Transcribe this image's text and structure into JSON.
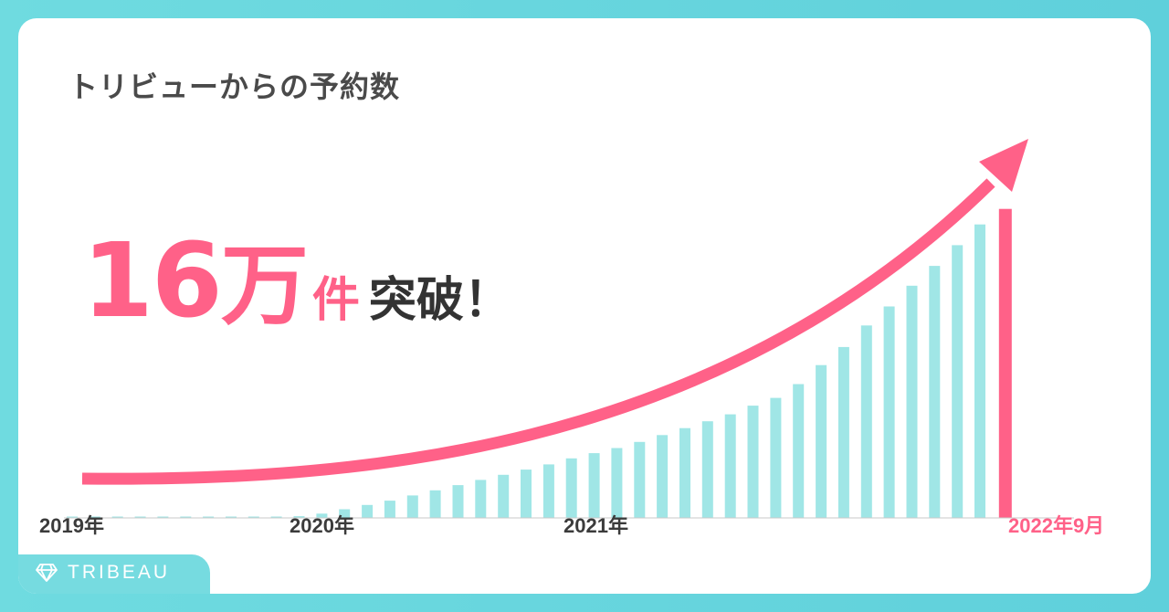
{
  "title": "トリビューからの予約数",
  "headline": {
    "number": "16",
    "unit_man": "万",
    "unit_ken": "件",
    "rest": "突破！"
  },
  "brand": {
    "name": "TRIBEAU",
    "icon": "diamond-icon"
  },
  "colors": {
    "bar": "#a0e6e6",
    "accent": "#ff6188",
    "text": "#3b3b3b",
    "frame": "#6fdbe0"
  },
  "chart_data": {
    "type": "bar",
    "title": "トリビューからの予約数",
    "x_tick_labels": [
      "2019年",
      "2020年",
      "2021年",
      "2022年9月"
    ],
    "values": [
      0.1,
      0.1,
      0.1,
      0.1,
      0.1,
      0.1,
      0.1,
      0.1,
      0.1,
      0.1,
      0.2,
      0.5,
      1.0,
      1.5,
      2.0,
      2.6,
      3.2,
      3.8,
      4.4,
      5.0,
      5.6,
      6.2,
      6.9,
      7.5,
      8.1,
      8.8,
      9.6,
      10.4,
      11.2,
      12.0,
      13.0,
      13.9,
      15.5,
      17.7,
      19.8,
      22.3,
      24.5,
      26.9,
      29.2,
      31.6,
      34.0,
      35.8
    ],
    "highlight_last": true,
    "ylim": [
      0,
      40
    ],
    "grid": false,
    "trend_arrow": true
  }
}
